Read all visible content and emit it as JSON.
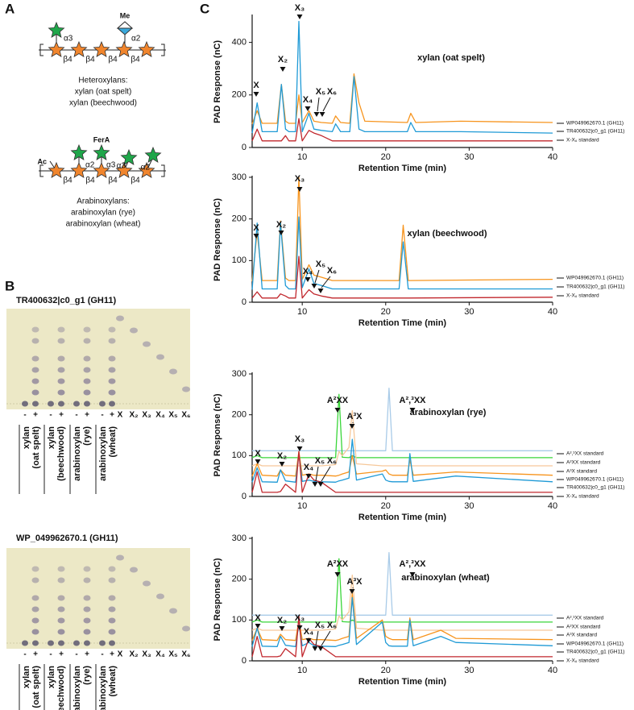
{
  "panel_labels": [
    "A",
    "B",
    "C"
  ],
  "panel_a": {
    "diagram_1": {
      "substituents": [
        "α3",
        "Me",
        "α2"
      ],
      "linkages": [
        "β4",
        "β4",
        "β4",
        "β4"
      ],
      "heading": "Heteroxylans:",
      "substrates": [
        "xylan (oat spelt)",
        "xylan (beechwood)"
      ]
    },
    "diagram_2": {
      "substituents": [
        "Ac",
        "FerA",
        "α2",
        "α3",
        "α3",
        "α2"
      ],
      "linkages": [
        "β4",
        "β4",
        "β4",
        "β4"
      ],
      "heading": "Arabinoxylans:",
      "substrates": [
        "arabinoxylan (rye)",
        "arabinoxylan (wheat)"
      ]
    }
  },
  "panel_b": {
    "plates": [
      {
        "title": "TR400632|c0_g1 (GH11)",
        "lanes": [
          "-",
          "+",
          "-",
          "+",
          "-",
          "+",
          "-",
          "+",
          "X",
          "X₂",
          "X₃",
          "X₄",
          "X₅",
          "X₆"
        ],
        "samples": [
          [
            "xylan",
            "(oat spelt)"
          ],
          [
            "xylan",
            "(beechwood)"
          ],
          [
            "arabinoxylan",
            "(rye)"
          ],
          [
            "arabinoxylan",
            "(wheat)"
          ]
        ]
      },
      {
        "title": "WP_049962670.1 (GH11)",
        "lanes": [
          "-",
          "+",
          "-",
          "+",
          "-",
          "+",
          "-",
          "+",
          "X",
          "X₂",
          "X₃",
          "X₄",
          "X₅",
          "X₆"
        ],
        "samples": [
          [
            "xylan",
            "(oat spelt)"
          ],
          [
            "xylan",
            "(beechwood)"
          ],
          [
            "arabinoxylan",
            "(rye)"
          ],
          [
            "arabinoxylan",
            "(wheat)"
          ]
        ]
      }
    ]
  },
  "chart_data": [
    {
      "type": "line",
      "title": "xylan (oat spelt)",
      "xlabel": "Retention Time (min)",
      "ylabel": "PAD Response (nC)",
      "xlim": [
        4,
        40
      ],
      "xticks": [
        10,
        20,
        30,
        40
      ],
      "ylim": [
        0,
        500
      ],
      "yticks": [
        0,
        200,
        400
      ],
      "x": [
        4,
        4.6,
        5.2,
        7.0,
        7.5,
        8.0,
        8.4,
        9.2,
        9.6,
        10.0,
        10.8,
        11.4,
        12.3,
        13.6,
        14.0,
        14.6,
        15.7,
        16.2,
        16.8,
        17.5,
        22.6,
        23.0,
        23.6,
        29.0,
        40
      ],
      "series": [
        {
          "name": "WP049962670.1 (GH11)",
          "color": "#f7941d",
          "values": [
            90,
            140,
            92,
            92,
            240,
            100,
            92,
            92,
            200,
            95,
            140,
            100,
            95,
            92,
            120,
            95,
            92,
            280,
            170,
            100,
            95,
            130,
            95,
            100,
            95
          ]
        },
        {
          "name": "TR400632|c0_g1 (GH11)",
          "color": "#1f9ad6",
          "values": [
            55,
            170,
            60,
            60,
            240,
            70,
            60,
            60,
            480,
            60,
            130,
            70,
            65,
            60,
            90,
            60,
            60,
            270,
            70,
            60,
            60,
            95,
            60,
            60,
            55
          ]
        },
        {
          "name": "X-X₆ standard",
          "color": "#c1272d",
          "values": [
            25,
            70,
            25,
            25,
            25,
            45,
            25,
            25,
            110,
            25,
            65,
            55,
            45,
            25,
            25,
            25,
            25,
            25,
            25,
            25,
            25,
            25,
            25,
            25,
            25
          ]
        }
      ],
      "annotations": [
        "X",
        "X₂",
        "X₃",
        "X₄",
        "X₅",
        "X₆"
      ]
    },
    {
      "type": "line",
      "title": "xylan (beechwood)",
      "xlabel": "Retention Time (min)",
      "ylabel": "PAD Response (nC)",
      "xlim": [
        4,
        40
      ],
      "xticks": [
        10,
        20,
        30,
        40
      ],
      "ylim": [
        0,
        300
      ],
      "yticks": [
        0,
        100,
        200,
        300
      ],
      "x": [
        4,
        4.6,
        5.2,
        7.0,
        7.4,
        8.0,
        8.4,
        9.2,
        9.6,
        10.0,
        10.8,
        11.4,
        12.3,
        13.6,
        21.6,
        22.1,
        22.7,
        40
      ],
      "series": [
        {
          "name": "WP049962670.1 (GH11)",
          "color": "#f7941d",
          "values": [
            50,
            170,
            52,
            52,
            195,
            58,
            52,
            52,
            300,
            55,
            90,
            65,
            60,
            52,
            52,
            185,
            52,
            55
          ]
        },
        {
          "name": "TR400632|c0_g1 (GH11)",
          "color": "#1f9ad6",
          "values": [
            30,
            190,
            32,
            32,
            190,
            40,
            32,
            32,
            205,
            35,
            80,
            45,
            40,
            32,
            32,
            145,
            32,
            32
          ]
        },
        {
          "name": "X-X₆ standard",
          "color": "#c1272d",
          "values": [
            10,
            25,
            10,
            10,
            20,
            15,
            10,
            10,
            110,
            10,
            30,
            20,
            15,
            10,
            10,
            10,
            10,
            12
          ]
        }
      ],
      "annotations": [
        "X",
        "X₂",
        "X₃",
        "X₄",
        "X₅",
        "X₆"
      ]
    },
    {
      "type": "line",
      "title": "arabinoxylan (rye)",
      "xlabel": "Retention Time (min)",
      "ylabel": "PAD Response (nC)",
      "xlim": [
        4,
        40
      ],
      "xticks": [
        10,
        20,
        30,
        40
      ],
      "ylim": [
        0,
        300
      ],
      "yticks": [
        0,
        100,
        200,
        300
      ],
      "x": [
        4,
        4.6,
        5.2,
        7.0,
        7.4,
        8.0,
        9.2,
        9.6,
        10.0,
        10.8,
        11.4,
        12.3,
        14.0,
        14.4,
        14.8,
        15.6,
        16.0,
        16.5,
        19.6,
        20.0,
        20.4,
        20.8,
        22.6,
        22.9,
        23.3,
        28.4,
        40
      ],
      "series": [
        {
          "name": "A²,³XX standard",
          "color": "#a9cbe8",
          "values": [
            112,
            112,
            112,
            112,
            112,
            112,
            112,
            112,
            112,
            112,
            112,
            112,
            112,
            112,
            112,
            112,
            112,
            112,
            112,
            112,
            265,
            112,
            112,
            112,
            112,
            112,
            112
          ]
        },
        {
          "name": "A²XX standard",
          "color": "#39d639",
          "values": [
            95,
            100,
            95,
            95,
            95,
            95,
            95,
            95,
            95,
            95,
            95,
            95,
            95,
            250,
            96,
            95,
            100,
            95,
            95,
            95,
            95,
            95,
            95,
            95,
            95,
            95,
            95
          ]
        },
        {
          "name": "A³X standard",
          "color": "#f6c89a",
          "values": [
            75,
            80,
            75,
            75,
            75,
            75,
            75,
            75,
            75,
            75,
            75,
            75,
            78,
            110,
            100,
            120,
            210,
            80,
            75,
            75,
            75,
            75,
            75,
            75,
            75,
            75,
            75
          ]
        },
        {
          "name": "WP049962670.1 (GH11)",
          "color": "#f7941d",
          "values": [
            50,
            80,
            52,
            50,
            65,
            52,
            50,
            110,
            52,
            55,
            52,
            52,
            50,
            52,
            55,
            60,
            100,
            55,
            62,
            65,
            55,
            52,
            52,
            90,
            52,
            60,
            52
          ]
        },
        {
          "name": "TR400632|c0_g1 (GH11)",
          "color": "#1f9ad6",
          "values": [
            35,
            70,
            36,
            35,
            65,
            38,
            35,
            105,
            37,
            40,
            37,
            36,
            35,
            38,
            40,
            45,
            140,
            40,
            55,
            40,
            37,
            36,
            36,
            105,
            37,
            50,
            36
          ]
        },
        {
          "name": "X-X₆ standard",
          "color": "#c1272d",
          "values": [
            10,
            60,
            10,
            10,
            12,
            30,
            10,
            110,
            10,
            55,
            40,
            35,
            10,
            10,
            10,
            10,
            10,
            10,
            10,
            10,
            10,
            10,
            10,
            10,
            10,
            10,
            10
          ]
        }
      ],
      "annotations": [
        "X",
        "X₂",
        "X₃",
        "X₄",
        "X₅",
        "X₆",
        "A²XX",
        "A³X",
        "A²,³XX"
      ]
    },
    {
      "type": "line",
      "title": "arabinoxylan (wheat)",
      "xlabel": "Retention Time (min)",
      "ylabel": "PAD Response (nC)",
      "xlim": [
        4,
        40
      ],
      "xticks": [
        10,
        20,
        30,
        40
      ],
      "ylim": [
        0,
        300
      ],
      "yticks": [
        0,
        100,
        200,
        300
      ],
      "x": [
        4,
        4.6,
        5.2,
        7.0,
        7.4,
        8.0,
        9.2,
        9.6,
        10.0,
        10.8,
        11.4,
        12.3,
        14.0,
        14.4,
        14.8,
        15.6,
        16.0,
        16.5,
        19.6,
        20.0,
        20.4,
        20.8,
        22.6,
        22.9,
        23.3,
        26.6,
        28.4,
        40
      ],
      "series": [
        {
          "name": "A²,³XX standard",
          "color": "#a9cbe8",
          "values": [
            112,
            112,
            112,
            112,
            112,
            112,
            112,
            112,
            112,
            112,
            112,
            112,
            112,
            112,
            112,
            112,
            112,
            112,
            112,
            112,
            265,
            112,
            112,
            112,
            112,
            112,
            112,
            112
          ]
        },
        {
          "name": "A²XX standard",
          "color": "#39d639",
          "values": [
            95,
            100,
            95,
            95,
            95,
            95,
            95,
            95,
            95,
            95,
            95,
            95,
            95,
            250,
            96,
            95,
            100,
            95,
            95,
            95,
            95,
            95,
            95,
            95,
            95,
            95,
            95,
            95
          ]
        },
        {
          "name": "A³X standard",
          "color": "#f6c89a",
          "values": [
            75,
            80,
            75,
            75,
            75,
            75,
            75,
            75,
            75,
            75,
            75,
            75,
            78,
            110,
            100,
            120,
            210,
            80,
            75,
            75,
            75,
            75,
            75,
            75,
            75,
            75,
            75,
            75
          ]
        },
        {
          "name": "WP049962670.1 (GH11)",
          "color": "#f7941d",
          "values": [
            50,
            80,
            52,
            50,
            65,
            52,
            50,
            100,
            52,
            55,
            52,
            52,
            50,
            52,
            55,
            60,
            165,
            55,
            100,
            60,
            55,
            52,
            52,
            105,
            52,
            75,
            55,
            52
          ]
        },
        {
          "name": "TR400632|c0_g1 (GH11)",
          "color": "#1f9ad6",
          "values": [
            35,
            80,
            36,
            35,
            60,
            38,
            35,
            90,
            37,
            45,
            37,
            36,
            35,
            38,
            40,
            45,
            155,
            40,
            95,
            45,
            37,
            36,
            36,
            100,
            37,
            60,
            45,
            37
          ]
        },
        {
          "name": "X-X₆ standard",
          "color": "#c1272d",
          "values": [
            10,
            60,
            10,
            10,
            12,
            30,
            10,
            110,
            10,
            55,
            40,
            35,
            10,
            10,
            10,
            10,
            10,
            10,
            10,
            10,
            10,
            10,
            10,
            10,
            10,
            10,
            10,
            10
          ]
        }
      ],
      "annotations": [
        "X",
        "X₂",
        "X₃",
        "X₄",
        "X₅",
        "X₆",
        "A²XX",
        "A³X",
        "A²,³XX"
      ]
    }
  ]
}
